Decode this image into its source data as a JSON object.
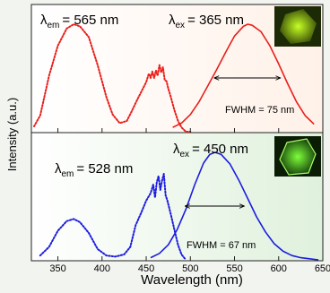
{
  "figure": {
    "ylabel": "Intensity (a.u.)",
    "xlabel": "Wavelength (nm)"
  },
  "colors": {
    "top_curves": "#e8201c",
    "bottom_curves": "#1c1ce0",
    "top_bg_start": "#ffffff",
    "top_bg_end": "#fff1e8",
    "bottom_bg_start": "#ffffff",
    "bottom_bg_end": "#dff1dc",
    "crystal_glow": "#c6ff24",
    "crystal_glow_bottom": "#7dff3a"
  },
  "panels": [
    {
      "em_sym": "λ",
      "em_sub": "em",
      "em_value": "= 565 nm",
      "ex_sym": "λ",
      "ex_sub": "ex",
      "ex_value": "=  365 nm",
      "fwhm": "FWHM = 75 nm",
      "inset_icon": "yellow-crystal-photo"
    },
    {
      "em_sym": "λ",
      "em_sub": "em",
      "em_value": "= 528 nm",
      "ex_sym": "λ",
      "ex_sub": "ex",
      "ex_value": "= 450 nm",
      "fwhm": "FWHM = 67 nm",
      "inset_icon": "green-crystal-photo"
    }
  ],
  "chart_data": [
    {
      "type": "line",
      "xlim": [
        320,
        650
      ],
      "ylim": [
        0,
        1.1
      ],
      "series": [
        {
          "style": "dotted",
          "x": [
            323,
            330,
            340,
            350,
            360,
            368,
            375,
            385,
            395,
            405,
            412,
            420,
            428,
            433,
            440,
            445,
            450,
            453,
            455,
            457,
            459,
            461,
            463,
            465,
            467,
            469,
            471,
            473,
            475,
            478,
            482,
            486,
            490,
            495,
            500
          ],
          "y": [
            0.05,
            0.15,
            0.52,
            0.8,
            0.96,
            1.0,
            0.98,
            0.88,
            0.62,
            0.32,
            0.16,
            0.08,
            0.1,
            0.18,
            0.3,
            0.38,
            0.46,
            0.54,
            0.5,
            0.56,
            0.5,
            0.57,
            0.52,
            0.62,
            0.55,
            0.6,
            0.48,
            0.47,
            0.4,
            0.32,
            0.2,
            0.1,
            0.04,
            0.0,
            0.0
          ]
        },
        {
          "style": "solid",
          "x": [
            480,
            490,
            500,
            510,
            520,
            530,
            540,
            550,
            560,
            565,
            570,
            580,
            590,
            600,
            610,
            620,
            630,
            640
          ],
          "y": [
            0.04,
            0.08,
            0.16,
            0.28,
            0.43,
            0.58,
            0.74,
            0.89,
            0.98,
            1.0,
            0.99,
            0.93,
            0.8,
            0.63,
            0.45,
            0.28,
            0.15,
            0.07
          ]
        }
      ],
      "annotations": {
        "fwhm_arrow_x": [
          527,
          602
        ],
        "fwhm_arrow_y": 0.5
      }
    },
    {
      "type": "line",
      "xlim": [
        320,
        650
      ],
      "ylim": [
        0,
        1.1
      ],
      "series": [
        {
          "style": "dotted",
          "x": [
            330,
            340,
            350,
            360,
            368,
            375,
            385,
            395,
            405,
            415,
            425,
            432,
            438,
            445,
            450,
            455,
            458,
            460,
            462,
            464,
            466,
            468,
            470,
            472,
            474,
            478,
            482,
            486,
            490,
            495
          ],
          "y": [
            0.04,
            0.12,
            0.27,
            0.36,
            0.38,
            0.35,
            0.25,
            0.1,
            0.04,
            0.03,
            0.05,
            0.12,
            0.32,
            0.45,
            0.55,
            0.62,
            0.7,
            0.58,
            0.72,
            0.78,
            0.65,
            0.74,
            0.8,
            0.6,
            0.55,
            0.42,
            0.28,
            0.14,
            0.05,
            0.0
          ]
        },
        {
          "style": "solid",
          "x": [
            455,
            465,
            475,
            485,
            495,
            505,
            515,
            522,
            528,
            535,
            545,
            555,
            565,
            575,
            585,
            595,
            605,
            615,
            625,
            635,
            645
          ],
          "y": [
            0.02,
            0.06,
            0.14,
            0.28,
            0.47,
            0.7,
            0.9,
            0.98,
            1.0,
            0.98,
            0.89,
            0.74,
            0.57,
            0.4,
            0.26,
            0.15,
            0.08,
            0.04,
            0.02,
            0.01,
            0.0
          ]
        }
      ],
      "annotations": {
        "fwhm_arrow_x": [
          494,
          561
        ],
        "fwhm_arrow_y": 0.5
      }
    }
  ],
  "axis": {
    "x_ticks": [
      350,
      400,
      450,
      500,
      550,
      600,
      650
    ],
    "x_tick_labels": [
      "350",
      "400",
      "450",
      "500",
      "550",
      "600",
      "650"
    ]
  }
}
